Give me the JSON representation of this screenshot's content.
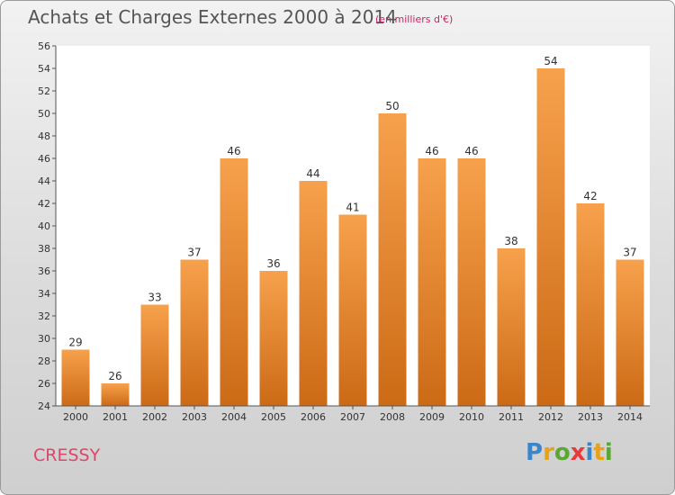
{
  "header": {
    "title": "Achats et Charges Externes 2000 à 2014",
    "unit": "(en milliers d'€)"
  },
  "footer": {
    "city": "CRESSY",
    "logo_text": "Proxiti"
  },
  "colors": {
    "bar_top": "#f7a14c",
    "bar_bottom": "#cc6a16",
    "title": "#555555",
    "unit": "#cc2266",
    "city": "#e0446a"
  },
  "chart_data": {
    "type": "bar",
    "title": "Achats et Charges Externes 2000 à 2014",
    "subtitle": "(en milliers d'€)",
    "xlabel": "",
    "ylabel": "",
    "categories": [
      "2000",
      "2001",
      "2002",
      "2003",
      "2004",
      "2005",
      "2006",
      "2007",
      "2008",
      "2009",
      "2010",
      "2011",
      "2012",
      "2013",
      "2014"
    ],
    "values": [
      29,
      26,
      33,
      37,
      46,
      36,
      44,
      41,
      50,
      46,
      46,
      38,
      54,
      42,
      37
    ],
    "ylim": [
      24,
      56
    ],
    "yticks": [
      24,
      26,
      28,
      30,
      32,
      34,
      36,
      38,
      40,
      42,
      44,
      46,
      48,
      50,
      52,
      54,
      56
    ],
    "grid": false,
    "legend": "none"
  }
}
